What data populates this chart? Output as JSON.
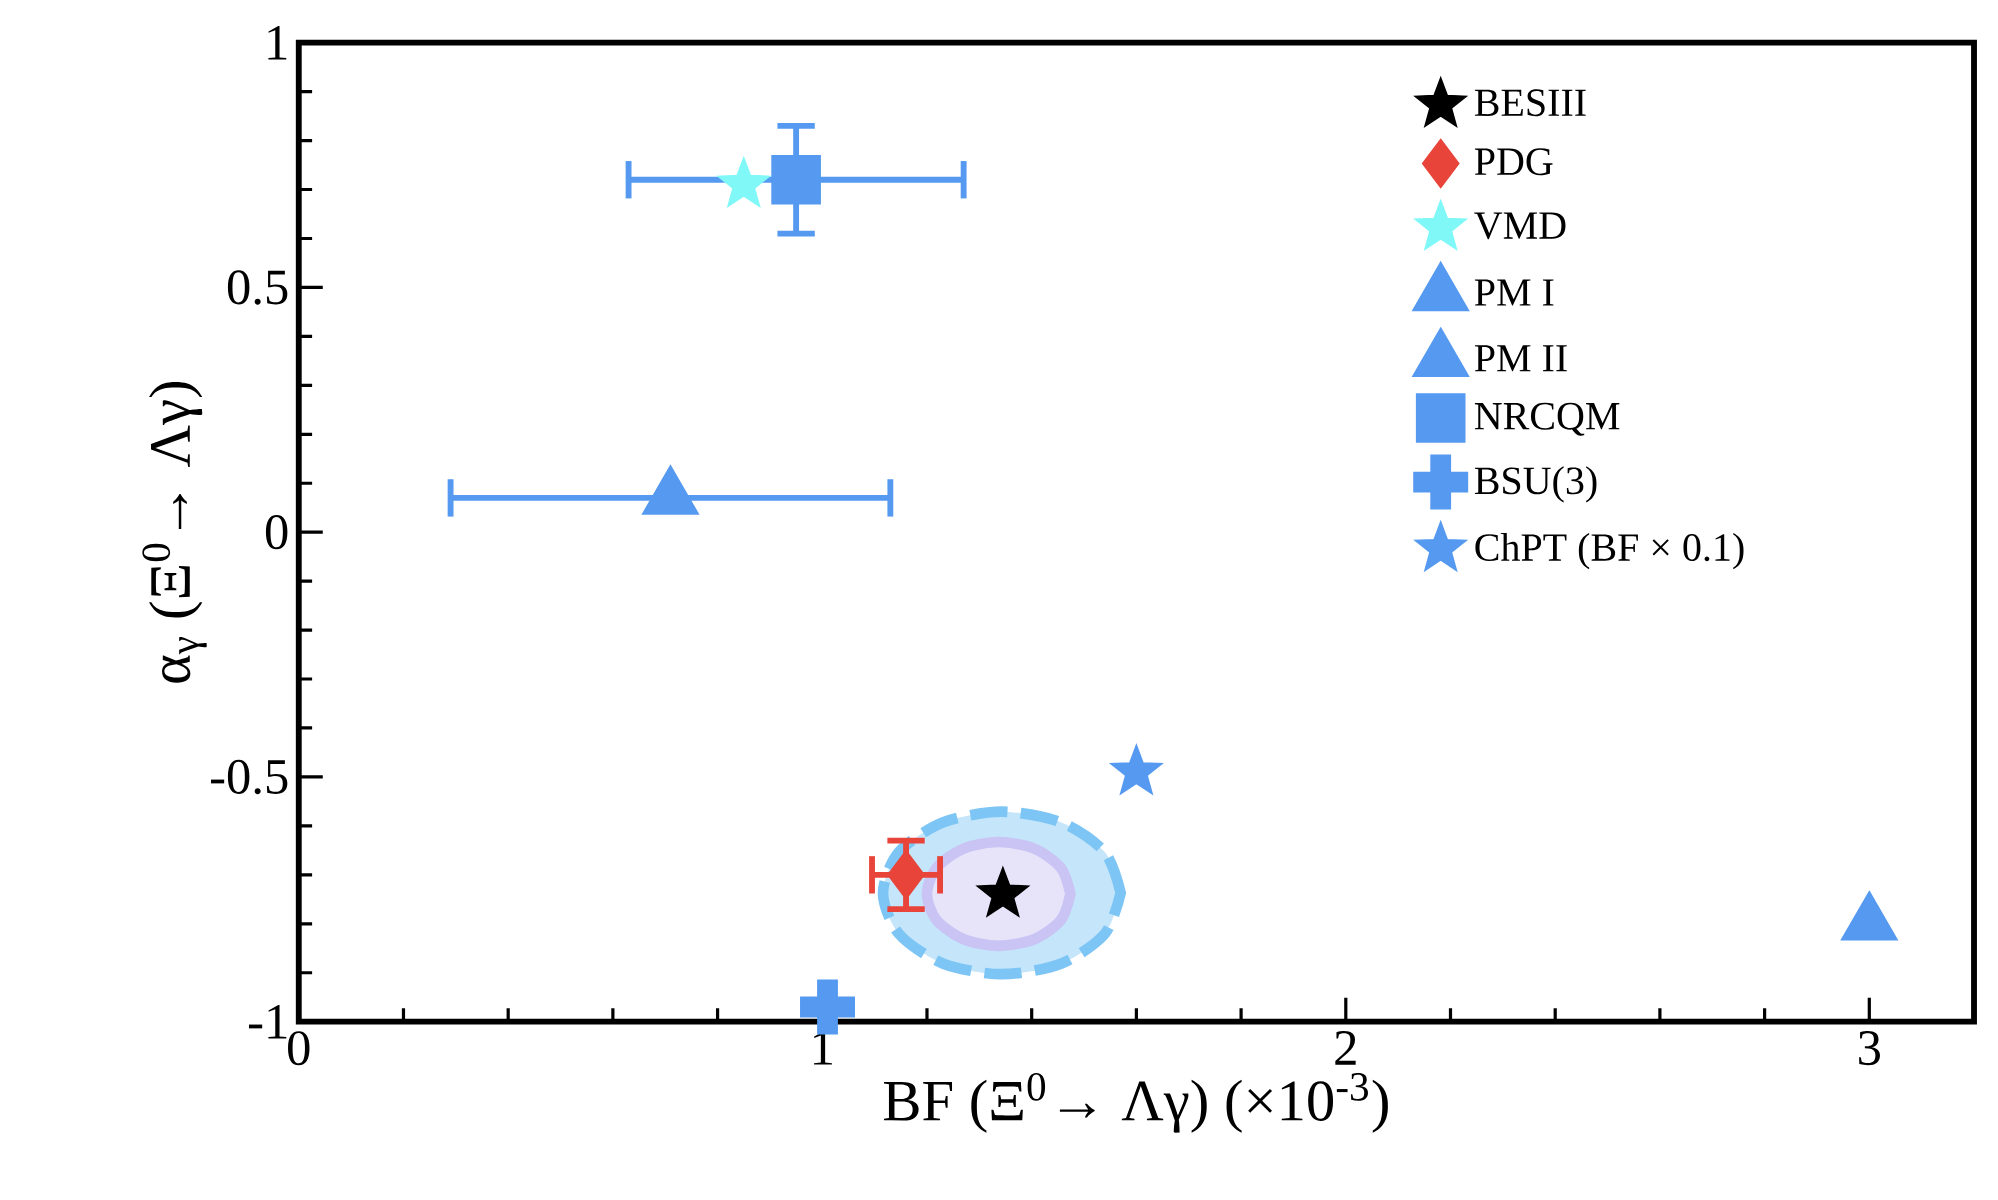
{
  "chart_data": {
    "type": "scatter",
    "xlabel": "BF (Ξ$^{0}$→ Λγ) (×10$^{-3}$)",
    "ylabel": "α$_{γ}$ (Ξ$^{0}$→ Λγ)",
    "xlim": [
      0,
      3.2
    ],
    "ylim": [
      -1,
      1
    ],
    "xticks": [
      0,
      1,
      2,
      3
    ],
    "yticks": [
      -1,
      -0.5,
      0,
      0.5,
      1
    ],
    "legend": "top right",
    "series": [
      {
        "type": "area",
        "color": "#7dc5f5",
        "line_style": "dashed",
        "x": [
          1.57,
          1.54,
          1.457,
          1.343,
          1.23,
          1.146,
          1.116,
          1.146,
          1.23,
          1.343,
          1.457,
          1.54,
          1.57
        ],
        "values": [
          -0.737,
          -0.654,
          -0.593,
          -0.571,
          -0.593,
          -0.654,
          -0.737,
          -0.82,
          -0.881,
          -0.903,
          -0.881,
          -0.82,
          -0.737
        ]
      },
      {
        "type": "area",
        "color": "#c9c4f4",
        "line_style": "solid",
        "x": [
          1.474,
          1.456,
          1.406,
          1.337,
          1.269,
          1.218,
          1.2,
          1.218,
          1.269,
          1.337,
          1.406,
          1.456,
          1.474
        ],
        "values": [
          -0.739,
          -0.686,
          -0.647,
          -0.633,
          -0.647,
          -0.686,
          -0.739,
          -0.792,
          -0.831,
          -0.845,
          -0.831,
          -0.792,
          -0.739
        ]
      },
      {
        "name": "BESIII",
        "color": "#000000",
        "marker": "star",
        "x": [
          1.345
        ],
        "values": [
          -0.74
        ]
      },
      {
        "name": "PDG",
        "color": "#e8443a",
        "marker": "diamond",
        "x": [
          1.16
        ],
        "values": [
          -0.7
        ],
        "errors": [
          0.07
        ],
        "xerrors": [
          0.065
        ]
      },
      {
        "name": "VMD",
        "color": "#80f8f8",
        "marker": "star",
        "x": [
          0.85
        ],
        "values": [
          0.71
        ]
      },
      {
        "name": "PM I",
        "color": "#5599f0",
        "marker": "triangle",
        "x": [
          3.0
        ],
        "values": [
          -0.8
        ]
      },
      {
        "name": "PM II",
        "color": "#5599f0",
        "marker": "triangle",
        "x": [
          0.71
        ],
        "values": [
          0.07
        ],
        "xerrors": [
          0.42
        ]
      },
      {
        "name": "NRCQM",
        "color": "#5599f0",
        "marker": "square",
        "x": [
          0.95
        ],
        "values": [
          0.72
        ],
        "errors": [
          0.11
        ],
        "xerrors": [
          0.32
        ]
      },
      {
        "name": "BSU(3)",
        "color": "#5599f0",
        "marker": "cross",
        "x": [
          1.01
        ],
        "values": [
          -0.97
        ]
      },
      {
        "name": "ChPT (BF × 0.1)",
        "color": "#5599f0",
        "marker": "star",
        "x": [
          1.6
        ],
        "values": [
          -0.49
        ]
      }
    ]
  }
}
